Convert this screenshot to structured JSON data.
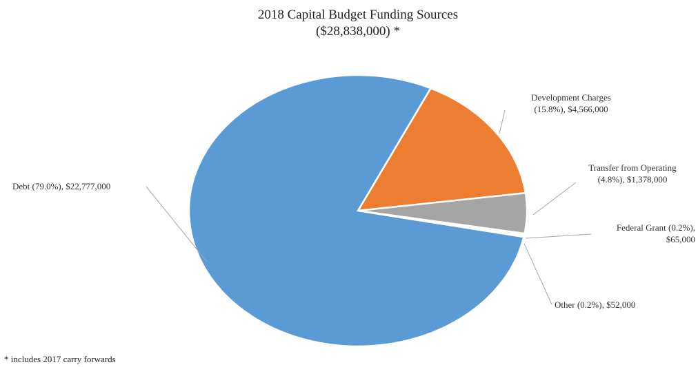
{
  "chart_data": {
    "type": "pie",
    "title": "2018 Capital Budget Funding Sources",
    "subtitle": "($28,838,000) *",
    "footnote": "* includes 2017 carry forwards",
    "slices": [
      {
        "label_lines": [
          "Development Charges",
          "(15.8%),  $4,566,000"
        ],
        "percent": 15.8,
        "value": 4566000,
        "color": "#ed7d31"
      },
      {
        "label_lines": [
          "Transfer from Operating",
          "(4.8%),  $1,378,000"
        ],
        "percent": 4.8,
        "value": 1378000,
        "color": "#a5a5a5"
      },
      {
        "label_lines": [
          "Federal Grant (0.2%),",
          "$65,000"
        ],
        "percent": 0.2,
        "value": 65000,
        "color": "#ffc000"
      },
      {
        "label_lines": [
          "Other (0.2%),  $52,000"
        ],
        "percent": 0.2,
        "value": 52000,
        "color": "#4472c4"
      },
      {
        "label_lines": [
          "Debt (79.0%),  $22,777,000"
        ],
        "percent": 79.0,
        "value": 22777000,
        "color": "#5b9bd5"
      }
    ]
  }
}
